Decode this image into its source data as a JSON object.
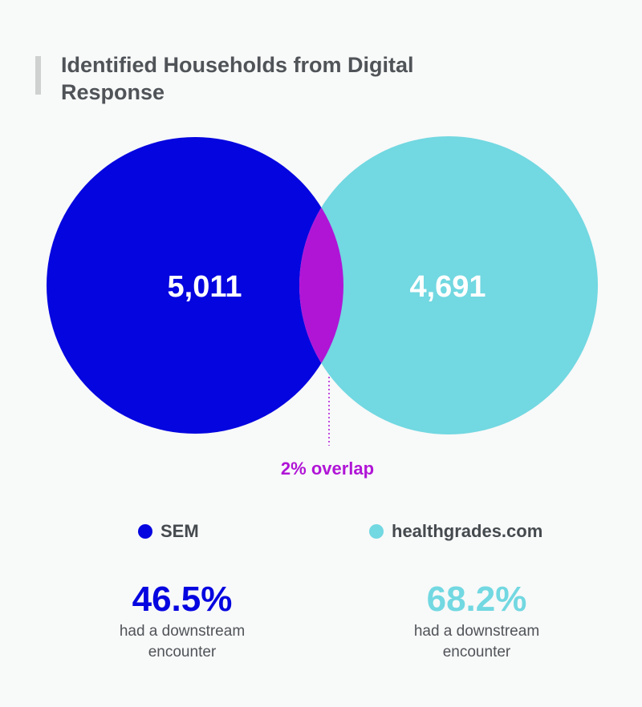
{
  "title": "Identified Households from Digital Response",
  "colors": {
    "sem": "#0505e0",
    "healthgrades": "#72d8e1",
    "overlap": "#b015d6",
    "text": "#505458"
  },
  "venn": {
    "sem_count": "5,011",
    "healthgrades_count": "4,691",
    "overlap_label": "2% overlap"
  },
  "legend": {
    "sem": "SEM",
    "healthgrades": "healthgrades.com"
  },
  "stats": {
    "sem": {
      "value": "46.5%",
      "caption_line1": "had a downstream",
      "caption_line2": "encounter"
    },
    "healthgrades": {
      "value": "68.2%",
      "caption_line1": "had a downstream",
      "caption_line2": "encounter"
    }
  }
}
